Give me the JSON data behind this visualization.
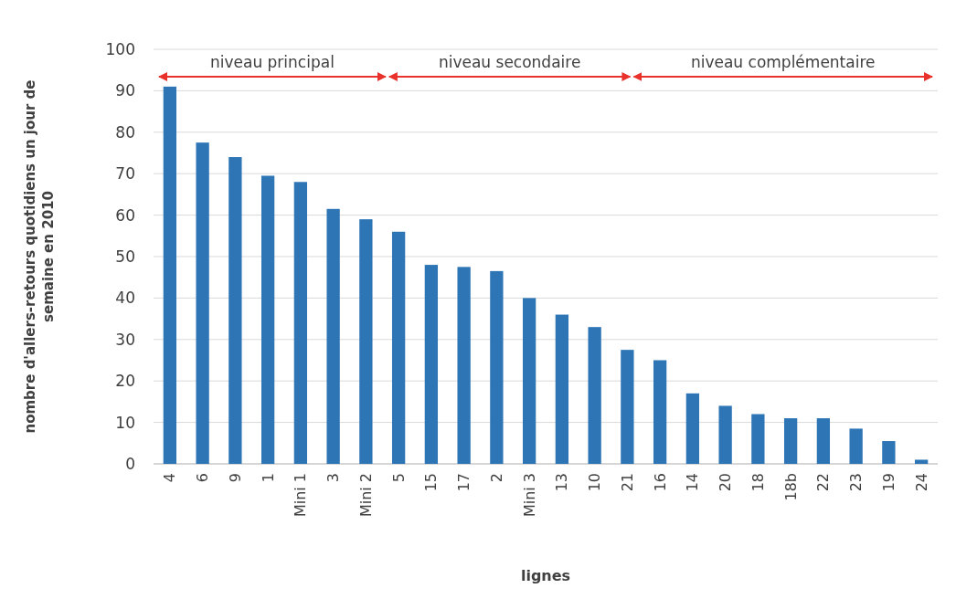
{
  "chart_data": {
    "type": "bar",
    "categories": [
      "4",
      "6",
      "9",
      "1",
      "Mini 1",
      "3",
      "Mini 2",
      "5",
      "15",
      "17",
      "2",
      "Mini 3",
      "13",
      "10",
      "21",
      "16",
      "14",
      "20",
      "18",
      "18b",
      "22",
      "23",
      "19",
      "24"
    ],
    "values": [
      91,
      77.5,
      74,
      69.5,
      68,
      61.5,
      59,
      56,
      48,
      47.5,
      46.5,
      40,
      36,
      33,
      27.5,
      25,
      17,
      14,
      12,
      11,
      11,
      8.5,
      5.5,
      1
    ],
    "color": "#2e75b6",
    "xlabel": "lignes",
    "ylabel": "nombre d'allers-retours quotidiens un jour de semaine en 2010",
    "ylim": [
      0,
      100
    ],
    "yticks": [
      0,
      10,
      20,
      30,
      40,
      50,
      60,
      70,
      80,
      90,
      100
    ],
    "grid": "y",
    "annotations": [
      "niveau principal",
      "niveau secondaire",
      "niveau complémentaire"
    ]
  }
}
